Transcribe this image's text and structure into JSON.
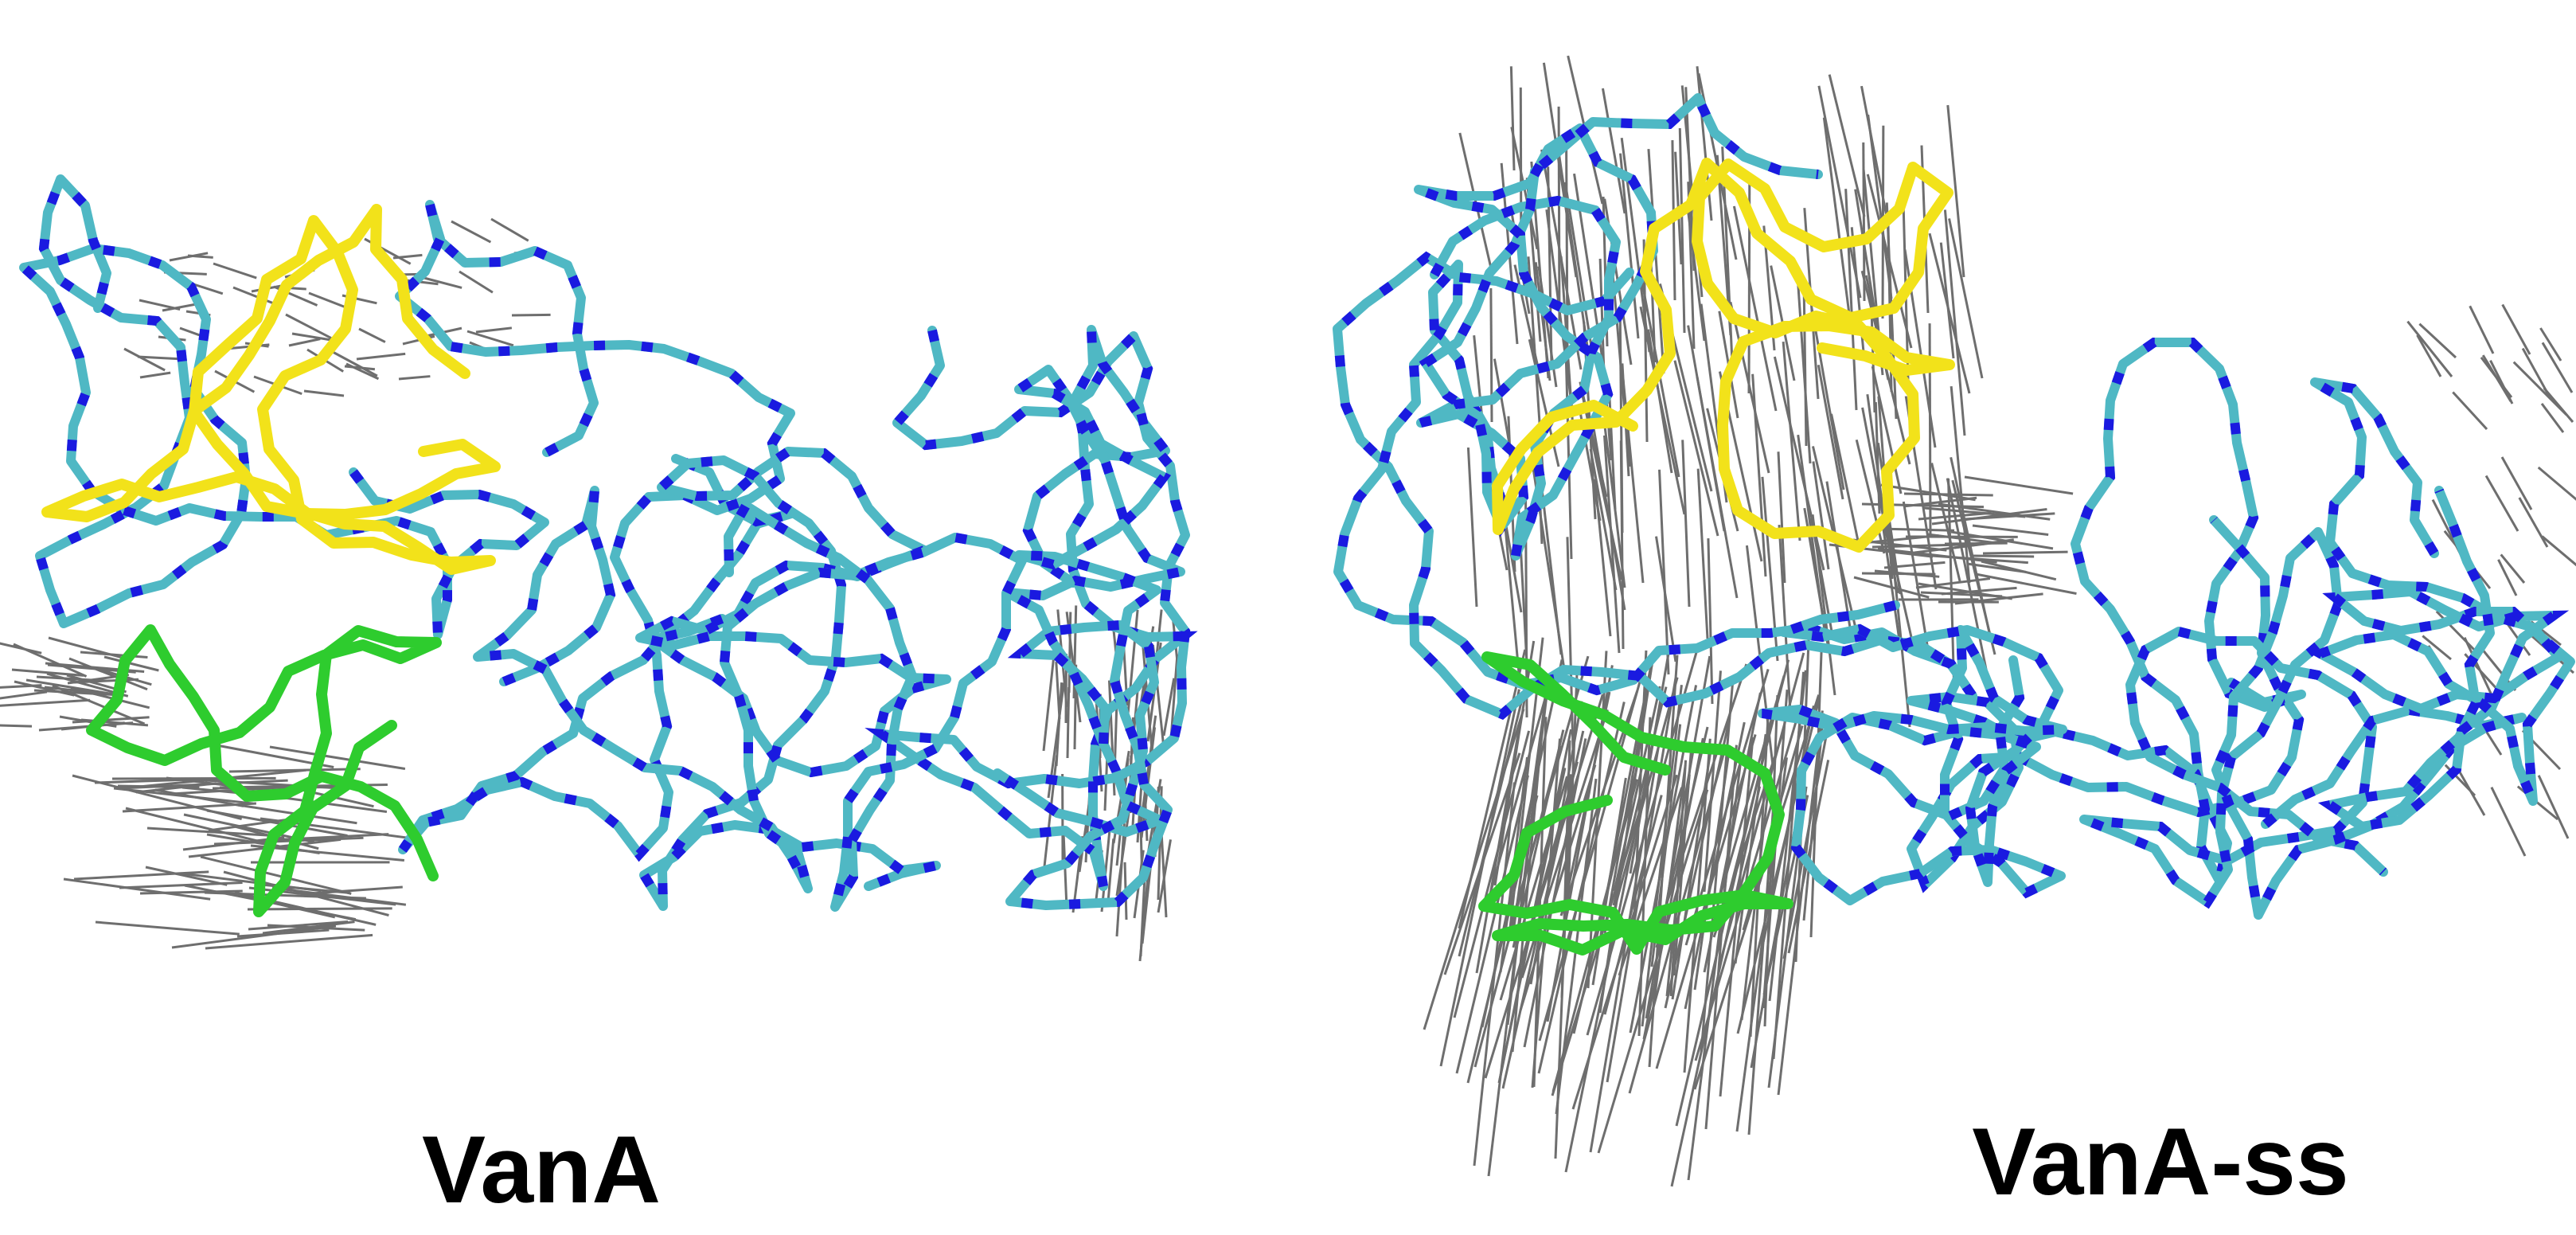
{
  "panels": [
    {
      "label": "VanA"
    },
    {
      "label": "VanA-ss"
    }
  ]
}
